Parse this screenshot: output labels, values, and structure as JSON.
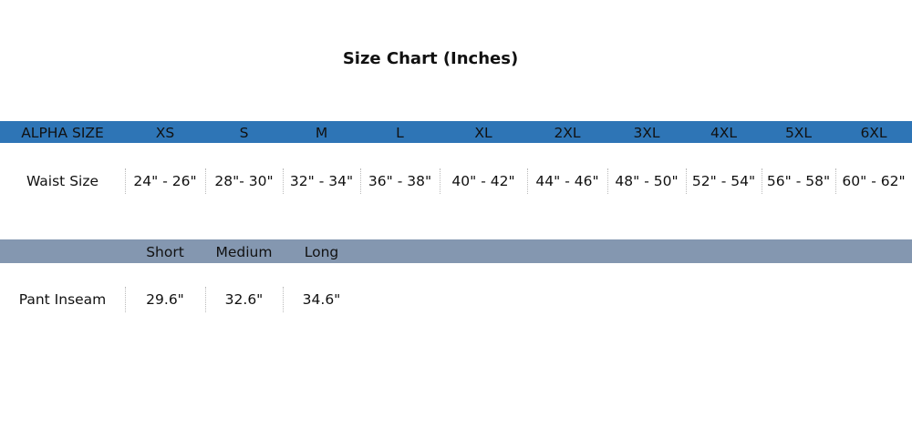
{
  "title": "Size Chart (Inches)",
  "size_table": {
    "header": [
      "ALPHA SIZE",
      "XS",
      "S",
      "M",
      "L",
      "XL",
      "2XL",
      "3XL",
      "4XL",
      "5XL",
      "6XL"
    ],
    "rows": [
      [
        "Waist Size",
        "24\" - 26\"",
        "28\"- 30\"",
        "32\" - 34\"",
        "36\" - 38\"",
        "40\" - 42\"",
        "44\" - 46\"",
        "48\" - 50\"",
        "52\" - 54\"",
        "56\" - 58\"",
        "60\" - 62\""
      ]
    ]
  },
  "inseam_table": {
    "header": [
      "Short",
      "Medium",
      "Long"
    ],
    "rows": [
      [
        "Pant Inseam",
        "29.6\"",
        "32.6\"",
        "34.6\""
      ]
    ]
  }
}
